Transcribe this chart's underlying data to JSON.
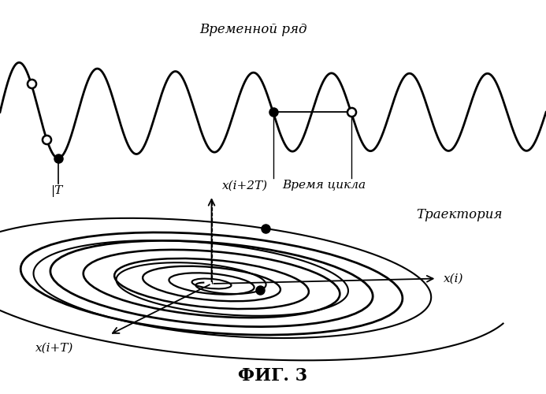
{
  "title": "ФИГ. 3",
  "label_timeseries": "Временной ряд",
  "label_trajectory": "Траектория",
  "label_T": "T",
  "label_cycle_time": "Время цикла",
  "label_xi": "x(i)",
  "label_xiT": "x(i+T)",
  "label_xi2T": "x(i+2T)",
  "bg_color": "#ffffff",
  "line_color": "#000000"
}
